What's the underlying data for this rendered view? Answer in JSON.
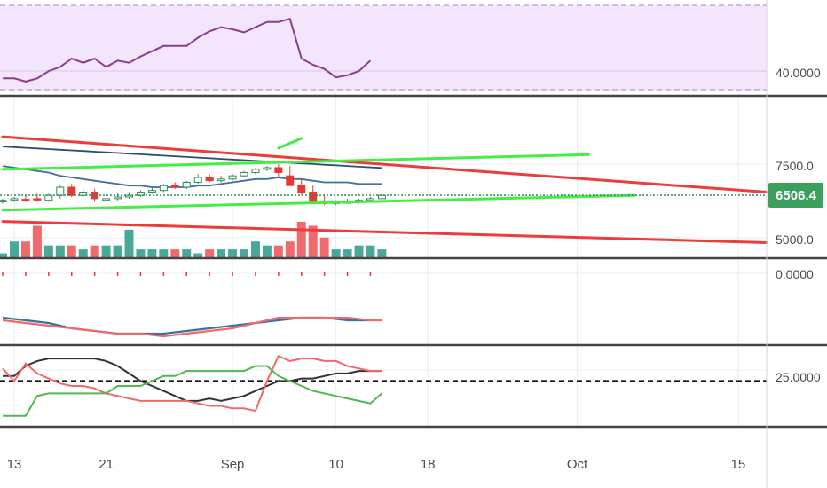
{
  "colors": {
    "background": "#ffffff",
    "rsi_band": "#f3e5fb",
    "rsi_line": "#8e3d8a",
    "grid": "#e8eef4",
    "separator": "#444444",
    "up_candle": "#2e8b57",
    "down_candle": "#e53935",
    "vol_up": "#4aa89a",
    "vol_down": "#ef6a6a",
    "trend_red": "#ee3b3b",
    "trend_green": "#44ee44",
    "ma_blue": "#3d6fa0",
    "ma_dark": "#2c4f70",
    "current_price_line": "#2e8b57",
    "price_badge": "#3aa05c",
    "dmi_black": "#333333",
    "dmi_red": "#f06a6a",
    "dmi_green": "#52b852"
  },
  "x_axis": {
    "ticks": [
      {
        "label": "13",
        "day": 0
      },
      {
        "label": "21",
        "day": 8
      },
      {
        "label": "Sep",
        "day": 19
      },
      {
        "label": "10",
        "day": 28
      },
      {
        "label": "18",
        "day": 36
      },
      {
        "label": "Oct",
        "day": 49
      },
      {
        "label": "15",
        "day": 63
      }
    ]
  },
  "price_axis": {
    "ticks": [
      "7500.0",
      "5000.0"
    ],
    "current_price": "6506.4"
  },
  "rsi_axis": {
    "ticks": [
      "40.0000"
    ]
  },
  "indicator_axis": {
    "ticks": [
      "0.0000"
    ]
  },
  "dmi_axis": {
    "ticks": [
      "25.0000"
    ]
  },
  "chart_data": [
    {
      "type": "line",
      "panel": "rsi",
      "x_days": [
        -1,
        0,
        1,
        2,
        3,
        4,
        5,
        6,
        7,
        8,
        9,
        10,
        11,
        12,
        13,
        14,
        15,
        16,
        17,
        18,
        19,
        20,
        21,
        22,
        23,
        24,
        25,
        26,
        27,
        28,
        29,
        30,
        31
      ],
      "series": [
        {
          "values": [
            39.5,
            39.5,
            39.2,
            39.5,
            40.2,
            40.6,
            41.4,
            41.0,
            41.4,
            40.6,
            41.2,
            41.0,
            41.6,
            42.1,
            42.6,
            42.6,
            42.6,
            43.4,
            44.0,
            44.4,
            44.2,
            43.9,
            44.4,
            44.9,
            44.9,
            45.2,
            41.4,
            40.8,
            40.4,
            39.6,
            39.8,
            40.2,
            41.2
          ]
        }
      ],
      "ylim": [
        38,
        47
      ]
    },
    {
      "type": "candlestick",
      "panel": "price",
      "x_days": [
        -1,
        0,
        1,
        2,
        3,
        4,
        5,
        6,
        7,
        8,
        9,
        10,
        11,
        12,
        13,
        14,
        15,
        16,
        17,
        18,
        19,
        20,
        21,
        22,
        23,
        24,
        25,
        26,
        27,
        28,
        29,
        30,
        31,
        32
      ],
      "open": [
        6300,
        6350,
        6380,
        6400,
        6350,
        6500,
        6750,
        6500,
        6600,
        6350,
        6400,
        6450,
        6500,
        6600,
        6650,
        6800,
        6750,
        6900,
        7050,
        6950,
        7000,
        7100,
        7200,
        7300,
        7350,
        7100,
        6800,
        6600,
        6300,
        6250,
        6300,
        6300,
        6350,
        6400
      ],
      "high": [
        6400,
        6450,
        6500,
        6550,
        6550,
        6800,
        6850,
        6700,
        6700,
        6450,
        6550,
        6600,
        6650,
        6750,
        6850,
        6900,
        6950,
        7150,
        7150,
        7100,
        7150,
        7250,
        7350,
        7400,
        7450,
        7400,
        7000,
        6800,
        6500,
        6350,
        6400,
        6400,
        6450,
        6550
      ],
      "low": [
        6250,
        6300,
        6300,
        6300,
        6300,
        6400,
        6450,
        6450,
        6300,
        6300,
        6350,
        6400,
        6450,
        6550,
        6600,
        6700,
        6700,
        6850,
        6900,
        6900,
        6950,
        7050,
        7150,
        7250,
        7050,
        6800,
        6500,
        6250,
        6200,
        6200,
        6250,
        6250,
        6300,
        6350
      ],
      "close": [
        6350,
        6400,
        6350,
        6380,
        6500,
        6750,
        6500,
        6600,
        6400,
        6400,
        6450,
        6500,
        6600,
        6650,
        6800,
        6750,
        6900,
        7050,
        6950,
        7000,
        7100,
        7200,
        7300,
        7350,
        7200,
        6800,
        6600,
        6300,
        6250,
        6300,
        6300,
        6350,
        6400,
        6500
      ],
      "volume": [
        1,
        4,
        4,
        8,
        3,
        3,
        3,
        2,
        3,
        3,
        3,
        7,
        2,
        2,
        2,
        2,
        2,
        1,
        2,
        2,
        2,
        2,
        4,
        3,
        3,
        4,
        9,
        8,
        5,
        2,
        2,
        3,
        3,
        2
      ],
      "trendlines": [
        {
          "color": "red",
          "from": [
            -1,
            8300
          ],
          "to": [
            70,
            6600
          ]
        },
        {
          "color": "red",
          "from": [
            -1,
            5700
          ],
          "to": [
            70,
            5050
          ]
        },
        {
          "color": "green",
          "from": [
            -1,
            7300
          ],
          "to": [
            50,
            7750
          ]
        },
        {
          "color": "green",
          "from": [
            -1,
            6050
          ],
          "to": [
            54,
            6500
          ]
        },
        {
          "color": "green",
          "from": [
            23,
            7950
          ],
          "to": [
            25,
            8250
          ]
        }
      ],
      "ma_blue": [
        7400,
        7350,
        7300,
        7250,
        7200,
        7100,
        7050,
        7000,
        6950,
        6900,
        6850,
        6800,
        6800,
        6750,
        6750,
        6750,
        6750,
        6800,
        6800,
        6850,
        6900,
        6950,
        7000,
        7000,
        7050,
        7000,
        7000,
        6950,
        6900,
        6900,
        6900,
        6850,
        6850,
        6850
      ],
      "ma_dark": [
        8000,
        7980,
        7960,
        7940,
        7920,
        7900,
        7880,
        7860,
        7840,
        7820,
        7800,
        7780,
        7760,
        7740,
        7720,
        7700,
        7680,
        7660,
        7640,
        7620,
        7600,
        7580,
        7560,
        7540,
        7520,
        7500,
        7480,
        7460,
        7440,
        7420,
        7400,
        7380,
        7360,
        7340
      ],
      "current_price": 6506.4,
      "ylim": [
        4600,
        9500
      ]
    },
    {
      "type": "line",
      "panel": "oscillator",
      "x_days": [
        -1,
        1,
        3,
        5,
        7,
        9,
        11,
        13,
        15,
        17,
        19,
        21,
        23,
        25,
        27,
        29,
        31,
        32
      ],
      "series": [
        {
          "values": [
            -20,
            -21,
            -22,
            -24,
            -25,
            -26,
            -26,
            -26,
            -25,
            -24,
            -23,
            -22,
            -21,
            -20,
            -20,
            -21,
            -21,
            -21
          ]
        },
        {
          "values": [
            -21,
            -22,
            -23,
            -24,
            -25,
            -26,
            -26,
            -27,
            -26,
            -25,
            -24,
            -22,
            -20,
            -20,
            -20,
            -20,
            -21,
            -21
          ]
        }
      ],
      "ylim": [
        -30,
        2
      ]
    },
    {
      "type": "line",
      "panel": "dmi",
      "x_days": [
        -1,
        0,
        1,
        2,
        3,
        4,
        5,
        6,
        7,
        8,
        9,
        10,
        11,
        12,
        13,
        14,
        15,
        16,
        17,
        18,
        19,
        20,
        21,
        22,
        23,
        24,
        25,
        26,
        27,
        28,
        29,
        30,
        31,
        32
      ],
      "series": [
        {
          "values": [
            24,
            24,
            28,
            30,
            31,
            31,
            31,
            31,
            31,
            30,
            28,
            25,
            22,
            20,
            18,
            16,
            14,
            14,
            15,
            14,
            15,
            16,
            18,
            20,
            22,
            22,
            23,
            23,
            24,
            25,
            25,
            26,
            26,
            26
          ]
        },
        {
          "values": [
            27,
            22,
            29,
            25,
            23,
            21,
            20,
            20,
            19,
            17,
            16,
            15,
            14,
            14,
            14,
            14,
            14,
            13,
            12,
            12,
            11,
            11,
            10,
            22,
            32,
            30,
            31,
            31,
            30,
            30,
            28,
            27,
            26,
            26
          ]
        },
        {
          "values": [
            8,
            8,
            8,
            16,
            17,
            17,
            17,
            17,
            17,
            17,
            20,
            20,
            20,
            22,
            24,
            24,
            26,
            26,
            26,
            26,
            26,
            26,
            28,
            28,
            24,
            22,
            20,
            18,
            17,
            16,
            15,
            14,
            13,
            17
          ]
        }
      ],
      "reference_line": 22,
      "ylim": [
        4,
        36
      ]
    }
  ]
}
